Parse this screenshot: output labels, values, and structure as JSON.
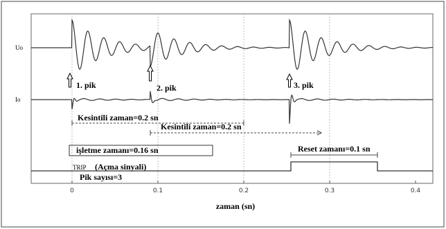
{
  "signals": {
    "uo_label": "Uo",
    "io_label": "Io"
  },
  "peaks": {
    "p1": "1. pik",
    "p2": "2. pik",
    "p3": "3. pik"
  },
  "annotations": {
    "kesintili_1": "Kesintili zaman=0.2 sn",
    "kesintili_2": "Kesintili zaman=0.2 sn",
    "isletme": "işletme zamanı=0.16 sn",
    "reset": "Reset zamanı=0.1 sn",
    "trip_tag": "TRIP",
    "trip_text": "(Açma sinyali)",
    "pik_sayisi": "Pik sayısı=3"
  },
  "axis": {
    "xlabel": "zaman (sn)",
    "ticks": [
      "0",
      "0.1",
      "0.2",
      "0.3",
      "0.4"
    ]
  },
  "colors": {
    "signal": "#333333",
    "grid": "#bdbdbd",
    "border": "#555555"
  }
}
